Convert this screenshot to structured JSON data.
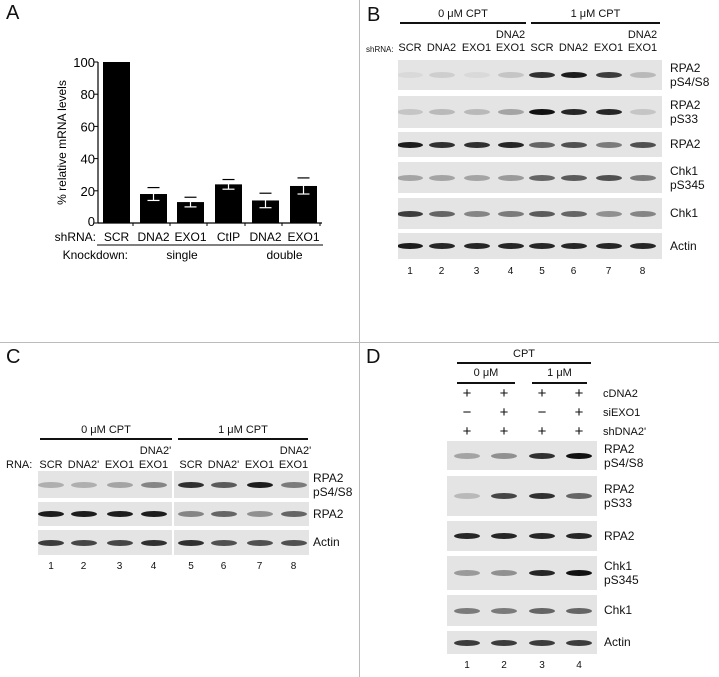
{
  "panels": {
    "a": "A",
    "b": "B",
    "c": "C",
    "d": "D"
  },
  "chart_data": {
    "type": "bar",
    "ylabel": "% relative mRNA levels",
    "ylim": [
      0,
      100
    ],
    "yticks": [
      "0",
      "20",
      "40",
      "60",
      "80",
      "100"
    ],
    "row_label": "shRNA:",
    "categories": [
      "SCR",
      "DNA2",
      "EXO1",
      "CtIP",
      "DNA2",
      "EXO1"
    ],
    "values": [
      100,
      18,
      13,
      24,
      14,
      23
    ],
    "errors": [
      0,
      4,
      3,
      3,
      4.5,
      5
    ],
    "group_row_label": "Knockdown:",
    "groups": [
      {
        "label": "single",
        "members": [
          0,
          1,
          2,
          3
        ]
      },
      {
        "label": "double",
        "members": [
          4,
          5
        ]
      }
    ],
    "grid": false,
    "color": "#000000"
  },
  "b": {
    "conditions": [
      "0 μM CPT",
      "1 μM CPT"
    ],
    "row_label": "shRNA:",
    "lanes_top": [
      "",
      "",
      "",
      "DNA2",
      "",
      "",
      "",
      "DNA2"
    ],
    "lanes": [
      "SCR",
      "DNA2",
      "EXO1",
      "EXO1",
      "SCR",
      "DNA2",
      "EXO1",
      "EXO1"
    ],
    "lane_numbers": [
      "1",
      "2",
      "3",
      "4",
      "5",
      "6",
      "7",
      "8"
    ],
    "blots": [
      {
        "label": [
          "RPA2",
          "pS4/S8"
        ],
        "intensity": [
          0,
          0.1,
          0.05,
          0.15,
          0.85,
          0.95,
          0.8,
          0.2
        ]
      },
      {
        "label": [
          "RPA2",
          "pS33"
        ],
        "intensity": [
          0.15,
          0.2,
          0.2,
          0.3,
          1,
          0.9,
          0.9,
          0.15
        ]
      },
      {
        "label": [
          "RPA2"
        ],
        "intensity": [
          0.95,
          0.85,
          0.85,
          0.9,
          0.6,
          0.7,
          0.5,
          0.7
        ]
      },
      {
        "label": [
          "Chk1",
          "pS345"
        ],
        "intensity": [
          0.3,
          0.3,
          0.3,
          0.35,
          0.6,
          0.65,
          0.7,
          0.5
        ]
      },
      {
        "label": [
          "Chk1"
        ],
        "intensity": [
          0.8,
          0.6,
          0.45,
          0.5,
          0.65,
          0.6,
          0.4,
          0.45
        ]
      },
      {
        "label": [
          "Actin"
        ],
        "intensity": [
          0.95,
          0.9,
          0.9,
          0.9,
          0.9,
          0.9,
          0.9,
          0.9
        ]
      }
    ]
  },
  "c": {
    "conditions": [
      "0 μM CPT",
      "1 μM CPT"
    ],
    "row_label": "RNA:",
    "lanes_top": [
      "",
      "",
      "",
      "DNA2'",
      "",
      "",
      "",
      "DNA2'"
    ],
    "lanes": [
      "SCR",
      "DNA2'",
      "EXO1",
      "EXO1",
      "SCR",
      "DNA2'",
      "EXO1",
      "EXO1"
    ],
    "lane_numbers": [
      "1",
      "2",
      "3",
      "4",
      "5",
      "6",
      "7",
      "8"
    ],
    "blots": [
      {
        "label": [
          "RPA2",
          "pS4/S8"
        ],
        "intensity": [
          0.25,
          0.25,
          0.3,
          0.45,
          0.85,
          0.65,
          0.95,
          0.5
        ]
      },
      {
        "label": [
          "RPA2"
        ],
        "intensity": [
          0.95,
          0.95,
          0.95,
          0.95,
          0.45,
          0.6,
          0.4,
          0.6
        ]
      },
      {
        "label": [
          "Actin"
        ],
        "intensity": [
          0.8,
          0.75,
          0.75,
          0.85,
          0.85,
          0.7,
          0.7,
          0.7
        ]
      }
    ]
  },
  "d": {
    "title": "CPT",
    "conditions": [
      "0 μM",
      "1 μM"
    ],
    "rows": [
      {
        "label": "cDNA2",
        "values": [
          "+",
          "+",
          "+",
          "+"
        ]
      },
      {
        "label": "siEXO1",
        "values": [
          "−",
          "+",
          "−",
          "+"
        ]
      },
      {
        "label": "shDNA2'",
        "values": [
          "+",
          "+",
          "+",
          "+"
        ]
      }
    ],
    "lane_numbers": [
      "1",
      "2",
      "3",
      "4"
    ],
    "blots": [
      {
        "label": [
          "RPA2",
          "pS4/S8"
        ],
        "intensity": [
          0.3,
          0.4,
          0.85,
          1
        ]
      },
      {
        "label": [
          "RPA2",
          "pS33"
        ],
        "intensity": [
          0.2,
          0.75,
          0.85,
          0.6
        ]
      },
      {
        "label": [
          "RPA2"
        ],
        "intensity": [
          0.9,
          0.9,
          0.9,
          0.9
        ]
      },
      {
        "label": [
          "Chk1",
          "pS345"
        ],
        "intensity": [
          0.35,
          0.4,
          0.9,
          1
        ]
      },
      {
        "label": [
          "Chk1"
        ],
        "intensity": [
          0.5,
          0.5,
          0.6,
          0.6
        ]
      },
      {
        "label": [
          "Actin"
        ],
        "intensity": [
          0.8,
          0.8,
          0.8,
          0.8
        ]
      }
    ]
  }
}
